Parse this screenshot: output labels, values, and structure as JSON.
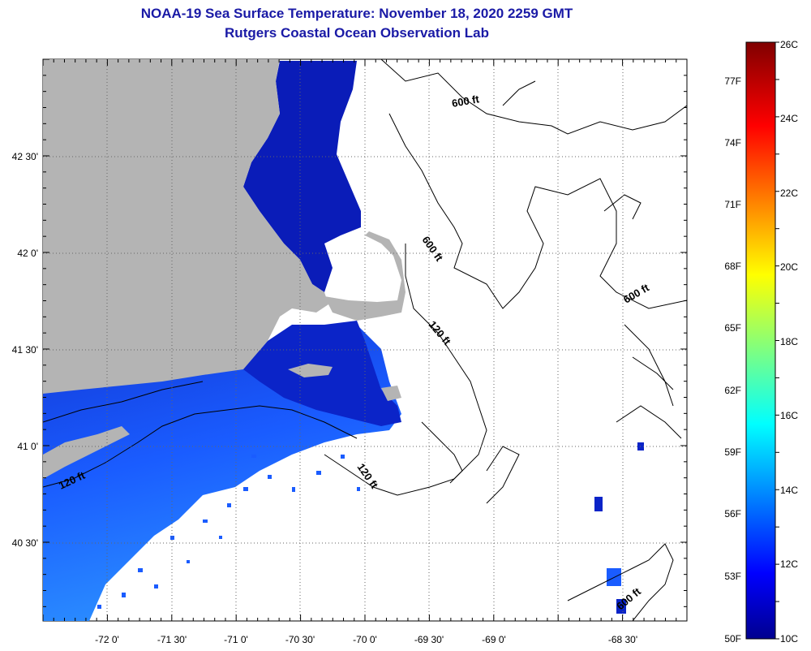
{
  "title": {
    "line1": "NOAA-19 Sea Surface Temperature:  November 18, 2020 2259 GMT",
    "line2": "Rutgers Coastal Ocean Observation Lab"
  },
  "axes": {
    "longitude_labels": [
      "-72 0'",
      "-71 30'",
      "-71 0'",
      "-70 30'",
      "-70 0'",
      "-69 30'",
      "-69 0'",
      "-68 30'"
    ],
    "latitude_labels": [
      "42 30'",
      "42 0'",
      "41 30'",
      "41 0'",
      "40 30'"
    ]
  },
  "contour_labels": [
    "600 ft",
    "600 ft",
    "600 ft",
    "600 ft",
    "120 ft",
    "120 ft",
    "120 ft"
  ],
  "colorbar": {
    "celsius_labels": [
      "26C",
      "24C",
      "22C",
      "20C",
      "18C",
      "16C",
      "14C",
      "12C",
      "10C"
    ],
    "fahrenheit_labels": [
      "77F",
      "74F",
      "71F",
      "68F",
      "65F",
      "62F",
      "59F",
      "56F",
      "53F",
      "50F"
    ]
  },
  "colors": {
    "title": "#1a1aa6",
    "land": "#b4b4b4",
    "sst_cold": "#00109a",
    "sst_mid": "#1a4cff",
    "sst_warm": "#2aa0ff"
  }
}
